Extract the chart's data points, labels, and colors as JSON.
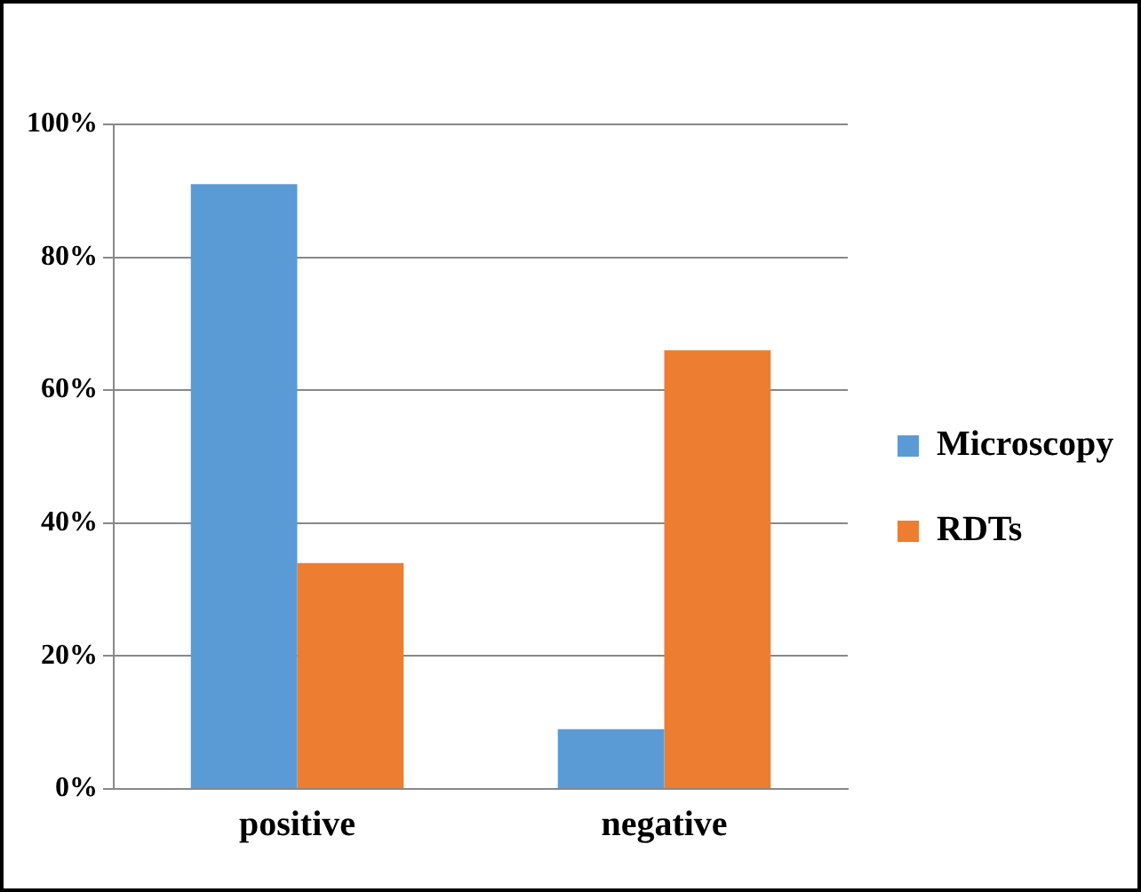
{
  "chart_data": {
    "type": "bar",
    "categories": [
      "positive",
      "negative"
    ],
    "series": [
      {
        "name": "Microscopy",
        "color": "#5b9bd5",
        "values": [
          91,
          9
        ]
      },
      {
        "name": "RDTs",
        "color": "#ed7d31",
        "values": [
          34,
          66
        ]
      }
    ],
    "ylim": [
      0,
      100
    ],
    "yticks": [
      {
        "value": 0,
        "label": "0%"
      },
      {
        "value": 20,
        "label": "20%"
      },
      {
        "value": 40,
        "label": "40%"
      },
      {
        "value": 60,
        "label": "60%"
      },
      {
        "value": 80,
        "label": "80%"
      },
      {
        "value": 100,
        "label": "100%"
      }
    ],
    "grid": "y",
    "legend": "right"
  }
}
